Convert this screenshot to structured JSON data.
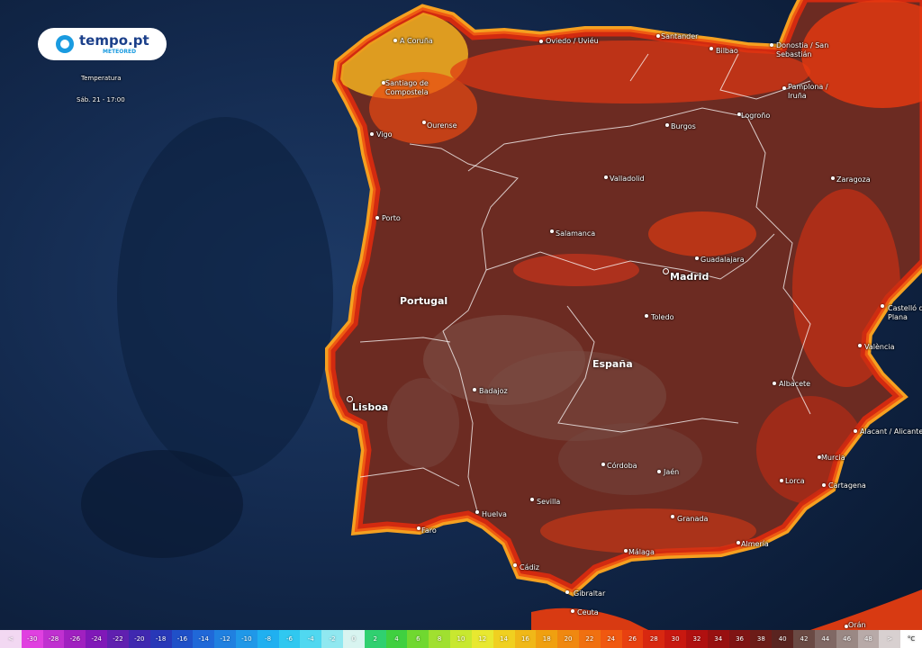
{
  "header": {
    "logo": "tempo.pt",
    "brand": "METEORED",
    "layer": "Temperatura",
    "time": "Sáb. 21 - 17:00"
  },
  "map": {
    "countries": [
      "Portugal",
      "España"
    ],
    "capitals": [
      "Madrid",
      "Lisboa"
    ],
    "cities": [
      "A Coruña",
      "Oviedo / Uviéu",
      "Santander",
      "Bilbao",
      "Donostia / San Sebastián",
      "Santiago de Compostela",
      "Ourense",
      "Vigo",
      "Porto",
      "Burgos",
      "Pamplona / Iruña",
      "Logroño",
      "Valladolid",
      "Zaragoza",
      "Salamanca",
      "Guadalajara",
      "Toledo",
      "Castelló de la Plana",
      "València",
      "Albacete",
      "Badajoz",
      "Alacant / Alicante",
      "Murcia",
      "Córdoba",
      "Jaén",
      "Lorca",
      "Cartagena",
      "Sevilla",
      "Huelva",
      "Granada",
      "Faro",
      "Almería",
      "Málaga",
      "Cádiz",
      "Gibraltar",
      "Ceuta",
      "Orán"
    ]
  },
  "legend": {
    "unit": "°C",
    "items": [
      {
        "label": "<",
        "color": "#f2d8f2"
      },
      {
        "label": -30,
        "color": "#e040e0"
      },
      {
        "label": -28,
        "color": "#c030d0"
      },
      {
        "label": -26,
        "color": "#a020c0"
      },
      {
        "label": -24,
        "color": "#8018b8"
      },
      {
        "label": -22,
        "color": "#6020b0"
      },
      {
        "label": -20,
        "color": "#4028b0"
      },
      {
        "label": -18,
        "color": "#2838b8"
      },
      {
        "label": -16,
        "color": "#2050c8"
      },
      {
        "label": -14,
        "color": "#2068d8"
      },
      {
        "label": -12,
        "color": "#2080e0"
      },
      {
        "label": -10,
        "color": "#2098e8"
      },
      {
        "label": -8,
        "color": "#20b0f0"
      },
      {
        "label": -6,
        "color": "#30c8f0"
      },
      {
        "label": -4,
        "color": "#50d8f0"
      },
      {
        "label": -2,
        "color": "#90e8f0"
      },
      {
        "label": 0,
        "color": "#d8f4f0"
      },
      {
        "label": 2,
        "color": "#30d070"
      },
      {
        "label": 4,
        "color": "#40d040"
      },
      {
        "label": 6,
        "color": "#70d830"
      },
      {
        "label": 8,
        "color": "#a0e030"
      },
      {
        "label": 10,
        "color": "#c8e830"
      },
      {
        "label": 12,
        "color": "#e8e830"
      },
      {
        "label": 14,
        "color": "#f0d020"
      },
      {
        "label": 16,
        "color": "#f0b818"
      },
      {
        "label": 18,
        "color": "#f0a010"
      },
      {
        "label": 20,
        "color": "#f08810"
      },
      {
        "label": 22,
        "color": "#f07010"
      },
      {
        "label": 24,
        "color": "#f05810"
      },
      {
        "label": 26,
        "color": "#e84010"
      },
      {
        "label": 28,
        "color": "#d82810"
      },
      {
        "label": 30,
        "color": "#c81810"
      },
      {
        "label": 32,
        "color": "#b01010"
      },
      {
        "label": 34,
        "color": "#981010"
      },
      {
        "label": 36,
        "color": "#801414"
      },
      {
        "label": 38,
        "color": "#6c1c18"
      },
      {
        "label": 40,
        "color": "#5a2420"
      },
      {
        "label": 42,
        "color": "#6a4a44"
      },
      {
        "label": 44,
        "color": "#806864"
      },
      {
        "label": 46,
        "color": "#9a8884"
      },
      {
        "label": 48,
        "color": "#b8aaa8"
      },
      {
        "label": ">",
        "color": "#d8d0d0"
      }
    ]
  }
}
